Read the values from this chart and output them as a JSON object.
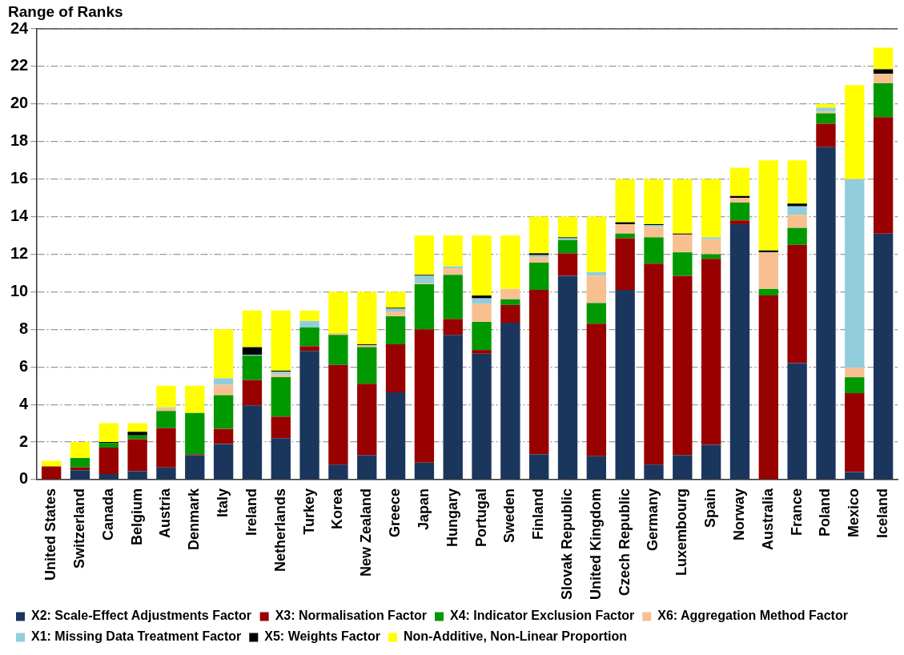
{
  "chart_data": {
    "type": "bar",
    "stacked": true,
    "ylabel": "Range of Ranks",
    "categories": [
      "United States",
      "Switzerland",
      "Canada",
      "Belgium",
      "Austria",
      "Denmark",
      "Italy",
      "Ireland",
      "Netherlands",
      "Turkey",
      "Korea",
      "New Zealand",
      "Greece",
      "Japan",
      "Hungary",
      "Portugal",
      "Sweden",
      "Finland",
      "Slovak Republic",
      "United Kingdom",
      "Czech Republic",
      "Germany",
      "Luxembourg",
      "Spain",
      "Norway",
      "Australia",
      "France",
      "Poland",
      "Mexico",
      "Iceland"
    ],
    "series": [
      {
        "name": "X2: Scale-Effect Adjustments Factor",
        "color": "#1b365d",
        "values": [
          0,
          0.5,
          0.3,
          0.45,
          0.65,
          1.3,
          1.9,
          3.95,
          2.2,
          6.85,
          0.8,
          1.3,
          4.65,
          0.9,
          7.7,
          6.7,
          8.35,
          1.35,
          10.85,
          1.25,
          10.1,
          0.8,
          1.3,
          1.85,
          13.6,
          0,
          6.2,
          17.7,
          0.4,
          13.1
        ]
      },
      {
        "name": "X3: Normalisation Factor",
        "color": "#990000",
        "values": [
          0.7,
          0.15,
          1.4,
          1.7,
          2.1,
          0.05,
          0.8,
          1.35,
          1.15,
          0.25,
          5.3,
          3.8,
          2.55,
          7.1,
          0.85,
          0.2,
          0.95,
          8.75,
          1.2,
          7.05,
          2.75,
          10.7,
          9.55,
          9.9,
          0.2,
          9.8,
          6.3,
          1.25,
          4.2,
          6.2
        ]
      },
      {
        "name": "X4: Indicator Exclusion Factor",
        "color": "#009900",
        "values": [
          0,
          0.5,
          0.25,
          0.2,
          0.9,
          2.2,
          1.8,
          1.3,
          2.1,
          1.0,
          1.6,
          1.95,
          1.5,
          2.4,
          2.35,
          1.5,
          0.3,
          1.45,
          0.7,
          1.1,
          0.25,
          1.4,
          1.25,
          0.25,
          0.95,
          0.35,
          0.9,
          0.55,
          0.85,
          1.8
        ]
      },
      {
        "name": "X6: Aggregation Method Factor",
        "color": "#f8c090",
        "values": [
          0,
          0,
          0,
          0,
          0.15,
          0,
          0.55,
          0,
          0.15,
          0,
          0.1,
          0.1,
          0.25,
          0.05,
          0.35,
          0.95,
          0.55,
          0.3,
          0,
          1.45,
          0.5,
          0.55,
          0.95,
          0.8,
          0.25,
          1.95,
          0.7,
          0.1,
          0.5,
          0.5
        ]
      },
      {
        "name": "X1: Missing Data Treatment Factor",
        "color": "#92cddc",
        "values": [
          0,
          0,
          0,
          0,
          0.05,
          0,
          0.35,
          0.05,
          0.15,
          0.35,
          0,
          0,
          0.15,
          0.4,
          0.1,
          0.3,
          0,
          0.1,
          0.1,
          0.2,
          0,
          0.1,
          0,
          0.1,
          0,
          0,
          0.45,
          0.2,
          10.05,
          0
        ]
      },
      {
        "name": "X5: Weights Factor",
        "color": "#000000",
        "values": [
          0,
          0,
          0.05,
          0.2,
          0,
          0,
          0,
          0.4,
          0.05,
          0,
          0,
          0.05,
          0.05,
          0.05,
          0,
          0.15,
          0,
          0.1,
          0.05,
          0,
          0.1,
          0.05,
          0.05,
          0,
          0.1,
          0.1,
          0.15,
          0,
          0,
          0.25
        ]
      },
      {
        "name": "Non-Additive, Non-Linear Proportion",
        "color": "#ffff00",
        "values": [
          0.3,
          0.85,
          1.0,
          0.45,
          1.15,
          1.45,
          2.6,
          1.95,
          3.2,
          0.55,
          2.2,
          2.8,
          0.85,
          2.1,
          1.65,
          3.2,
          2.85,
          1.95,
          1.1,
          2.95,
          2.3,
          2.4,
          2.9,
          3.1,
          1.5,
          4.8,
          2.3,
          0.2,
          5,
          1.15
        ]
      }
    ],
    "ylim": [
      0,
      24
    ],
    "yticks": [
      0,
      2,
      4,
      6,
      8,
      10,
      12,
      14,
      16,
      18,
      20,
      22,
      24
    ],
    "grid": "y",
    "legend": "bottom"
  }
}
